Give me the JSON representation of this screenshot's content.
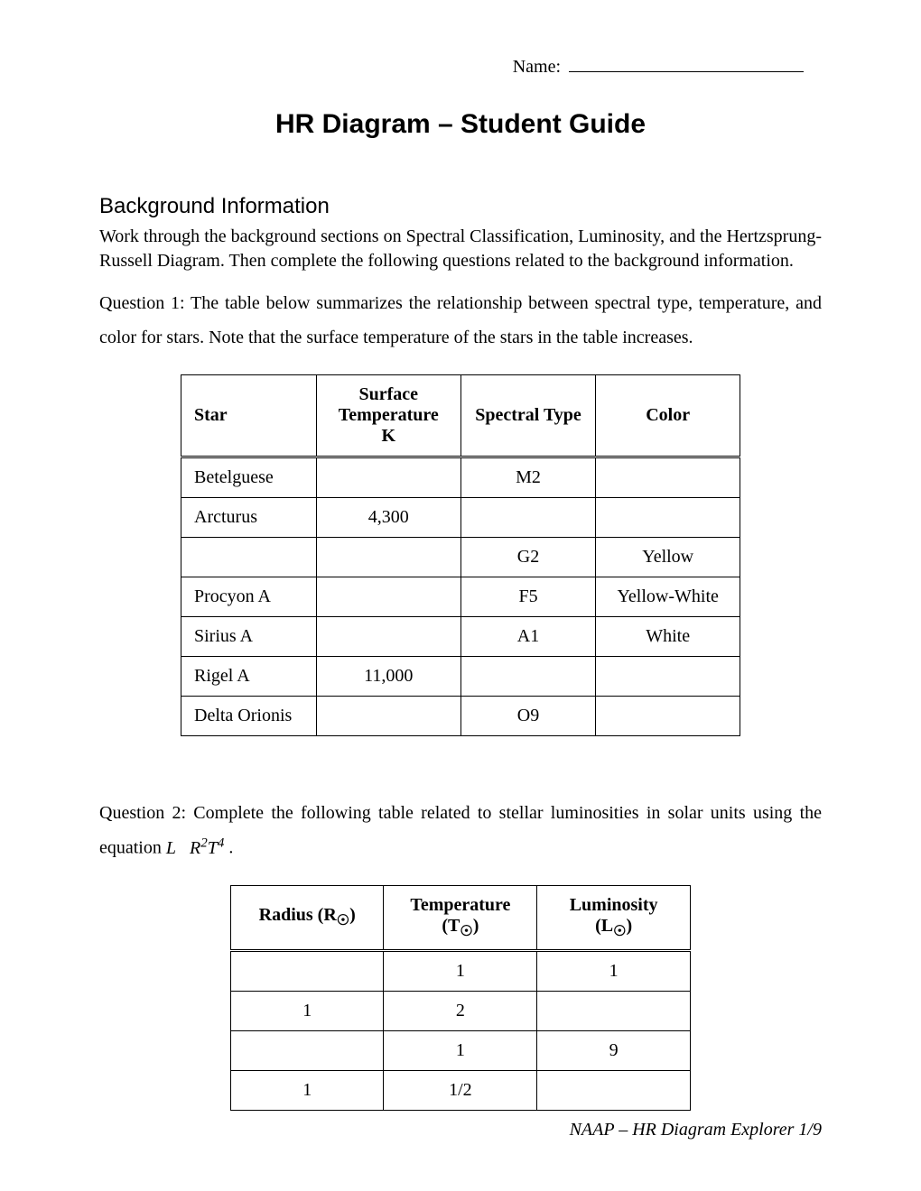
{
  "header": {
    "name_label": "Name:"
  },
  "title": "HR Diagram – Student Guide",
  "section_bg": "Background Information",
  "para_bg": "Work through the background sections on Spectral Classification, Luminosity, and the Hertzsprung-Russell Diagram. Then complete the following questions related to the background information.",
  "q1_text": "Question 1: The table below summarizes the relationship between spectral type, temperature, and color for stars.  Note that the surface temperature of the stars in the table increases.",
  "table1": {
    "headers": [
      "Star",
      "Surface Temperature K",
      "Spectral Type",
      "Color"
    ],
    "rows": [
      [
        "Betelguese",
        "",
        "M2",
        ""
      ],
      [
        "Arcturus",
        "4,300",
        "",
        ""
      ],
      [
        "",
        "",
        "G2",
        "Yellow"
      ],
      [
        "Procyon A",
        "",
        "F5",
        "Yellow-White"
      ],
      [
        "Sirius A",
        "",
        "A1",
        "White"
      ],
      [
        "Rigel A",
        "11,000",
        "",
        ""
      ],
      [
        "Delta Orionis",
        "",
        "O9",
        ""
      ]
    ]
  },
  "q2_prefix": "Question 2: Complete the following table related to stellar luminosities in solar units using the equation ",
  "q2_suffix": ".",
  "eq": {
    "L": "L",
    "prop": "∝",
    "R": "R",
    "sq": "2",
    "T": "T",
    "pow": "4"
  },
  "table2": {
    "headers": {
      "r": "Radius (R",
      "t": "Temperature (T",
      "l": "Luminosity (L",
      "close": ")"
    },
    "sun": "☉",
    "rows": [
      [
        "",
        "1",
        "1"
      ],
      [
        "1",
        "2",
        ""
      ],
      [
        "",
        "1",
        "9"
      ],
      [
        "1",
        "1/2",
        ""
      ]
    ]
  },
  "footer": "NAAP – HR Diagram Explorer 1/9"
}
